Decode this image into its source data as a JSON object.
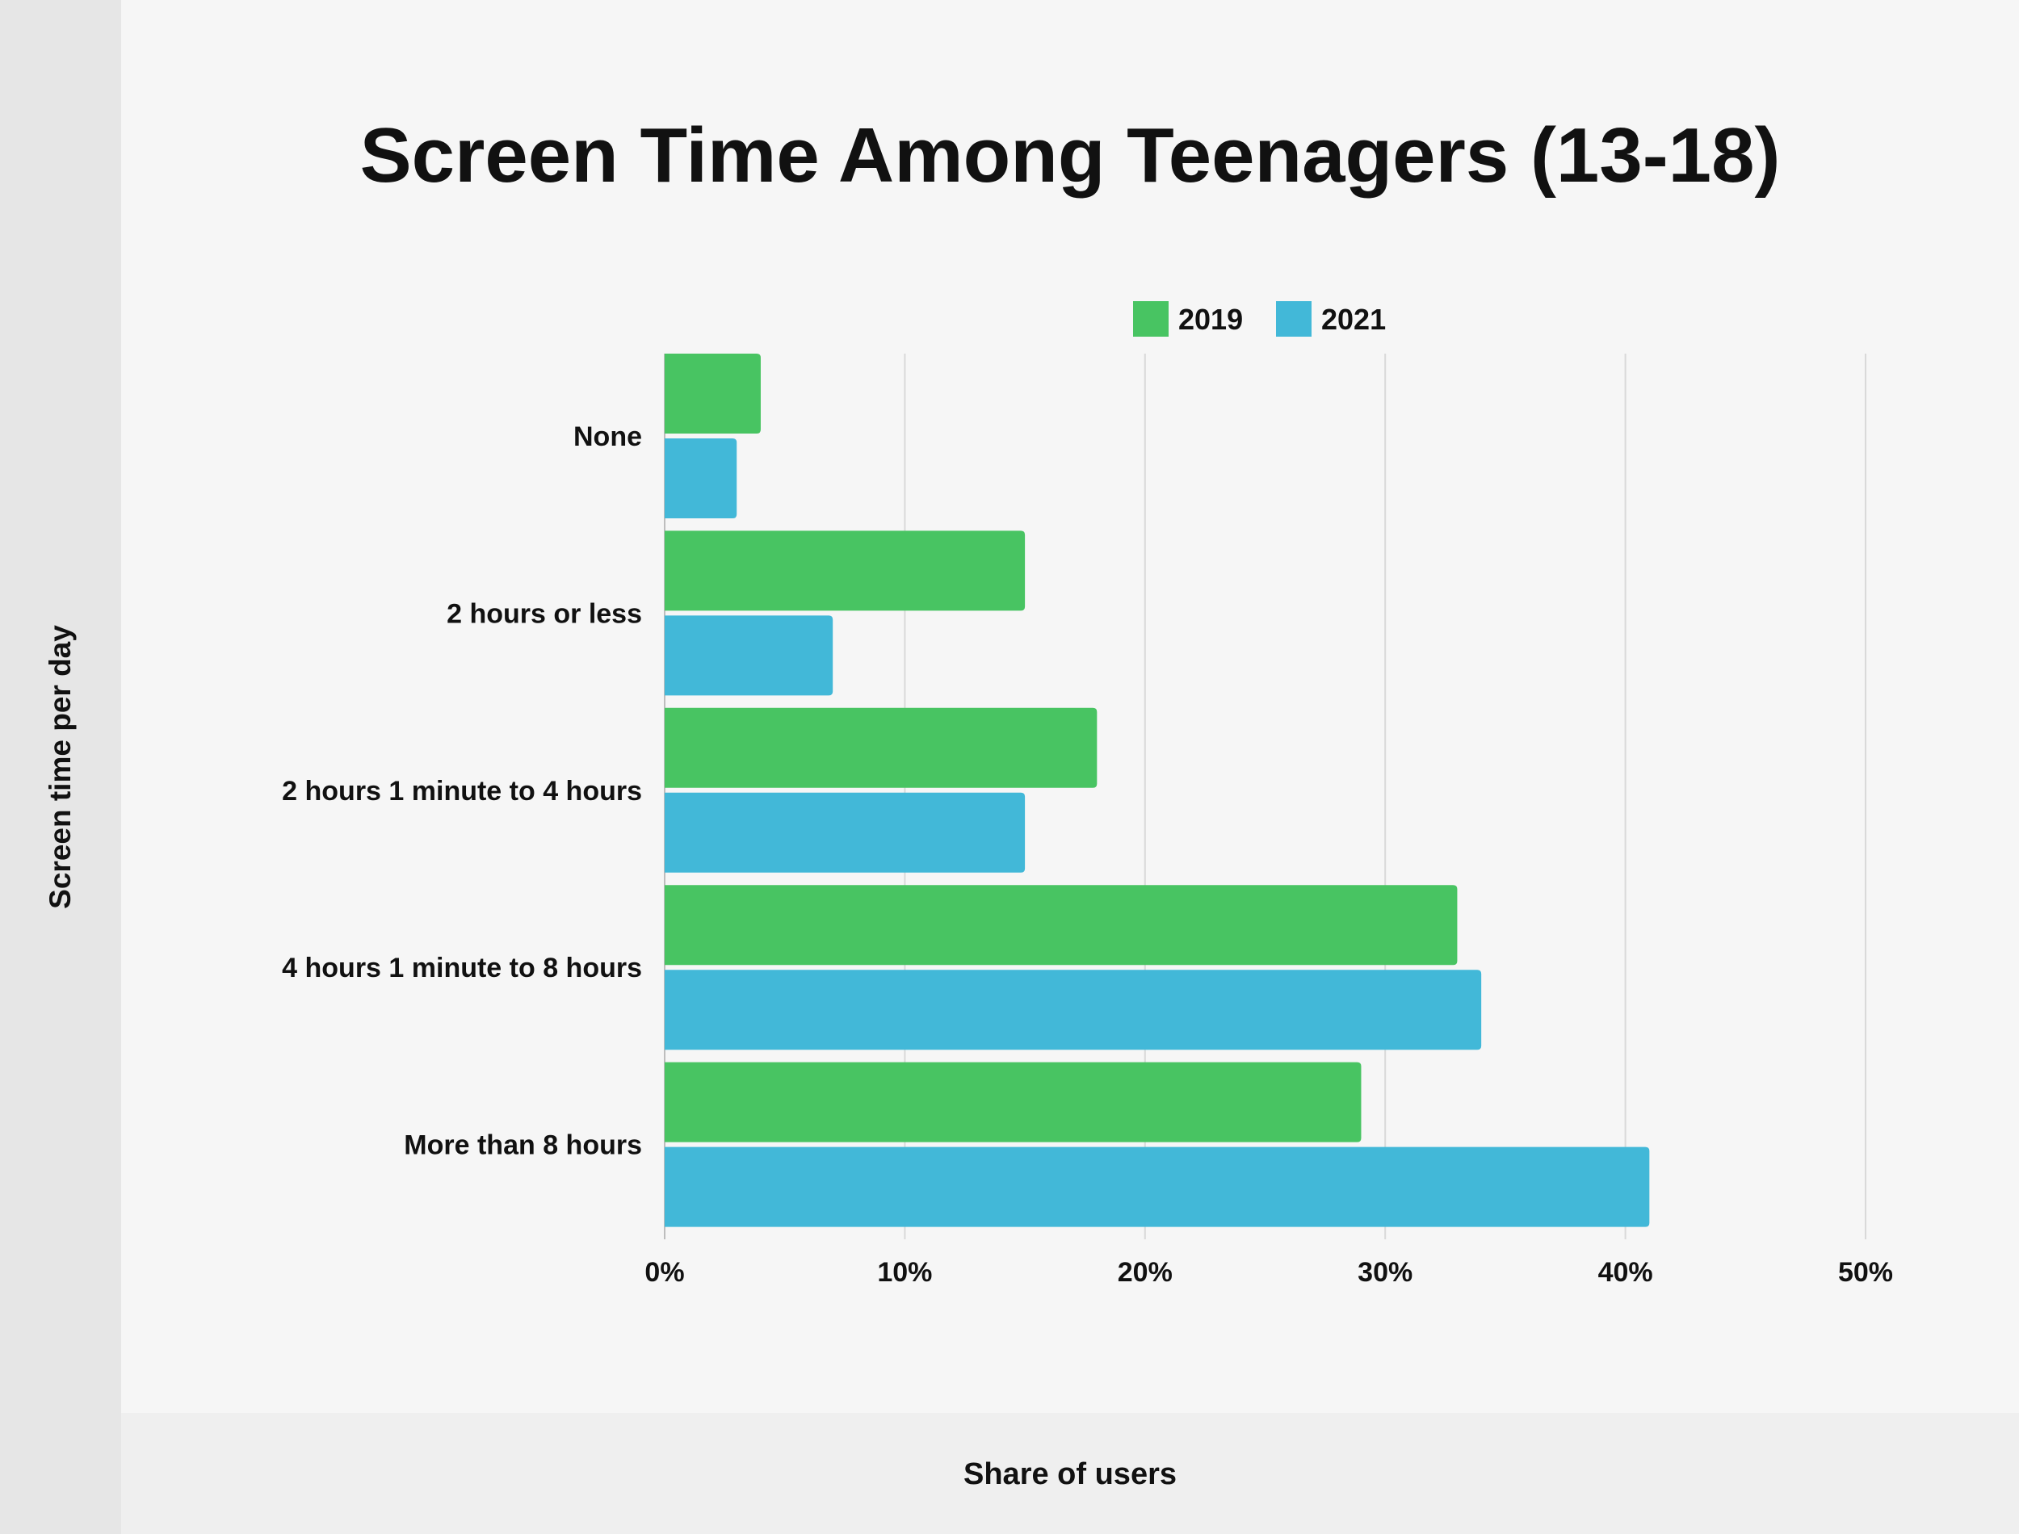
{
  "chart_data": {
    "type": "bar",
    "orientation": "horizontal",
    "title": "Screen Time Among Teenagers (13-18)",
    "xlabel": "Share of users",
    "ylabel": "Screen time per day",
    "categories": [
      "None",
      "2 hours or less",
      "2 hours 1 minute to 4 hours",
      "4 hours 1 minute to 8 hours",
      "More than 8 hours"
    ],
    "series": [
      {
        "name": "2019",
        "color": "#48c462",
        "values": [
          4,
          15,
          18,
          33,
          29
        ]
      },
      {
        "name": "2021",
        "color": "#42b8d8",
        "values": [
          3,
          7,
          15,
          34,
          41
        ]
      }
    ],
    "xlim": [
      0,
      50
    ],
    "xticks": [
      0,
      10,
      20,
      30,
      40,
      50
    ],
    "xtick_labels": [
      "0%",
      "10%",
      "20%",
      "30%",
      "40%",
      "50%"
    ],
    "grid": true,
    "legend_placement": "top-center",
    "unit": "%"
  }
}
